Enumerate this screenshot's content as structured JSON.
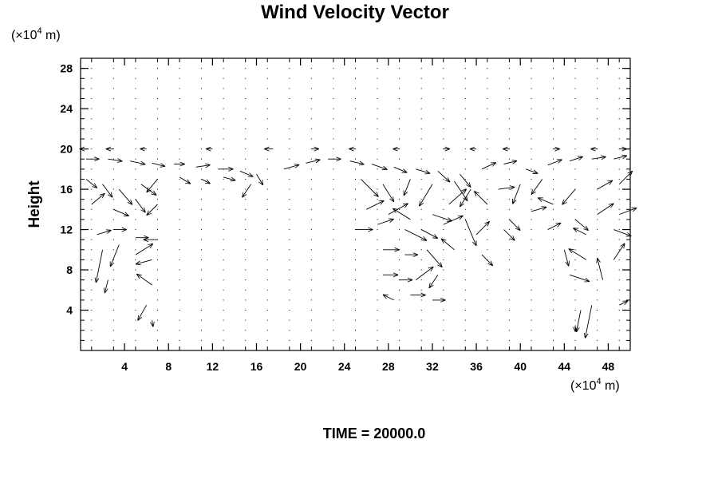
{
  "chart_data": {
    "type": "quiver",
    "title": "Wind Velocity Vector",
    "ylabel": "Height",
    "x_unit": {
      "prefix": "(×10",
      "exponent": "4",
      "suffix": " m)"
    },
    "y_unit": {
      "prefix": "(×10",
      "exponent": "4",
      "suffix": " m)"
    },
    "xlim": [
      0,
      50
    ],
    "ylim": [
      0,
      29
    ],
    "x_ticks": [
      4,
      8,
      12,
      16,
      20,
      24,
      28,
      32,
      36,
      40,
      44,
      48
    ],
    "y_ticks": [
      4,
      8,
      12,
      16,
      20,
      24,
      28
    ],
    "grid": false,
    "footer": "TIME = 20000.0",
    "vectors_note": "approximate reading of arrows: [x, y, u, v] in ×10^4 m",
    "vectors": [
      [
        0.5,
        19.0,
        1.2,
        0.0
      ],
      [
        2.5,
        19.0,
        1.3,
        -0.2
      ],
      [
        4.5,
        18.8,
        1.4,
        -0.3
      ],
      [
        6.5,
        18.6,
        1.2,
        -0.3
      ],
      [
        8.5,
        18.5,
        1.0,
        0.0
      ],
      [
        10.5,
        18.2,
        1.3,
        0.2
      ],
      [
        12.5,
        18.0,
        1.4,
        0.0
      ],
      [
        14.5,
        17.8,
        1.2,
        -0.5
      ],
      [
        16.0,
        17.5,
        0.6,
        -1.0
      ],
      [
        18.5,
        18.0,
        1.4,
        0.4
      ],
      [
        20.5,
        18.6,
        1.3,
        0.3
      ],
      [
        22.5,
        19.0,
        1.2,
        0.0
      ],
      [
        24.5,
        18.8,
        1.3,
        -0.3
      ],
      [
        26.5,
        18.5,
        1.4,
        -0.5
      ],
      [
        28.5,
        18.2,
        1.2,
        -0.5
      ],
      [
        30.5,
        18.0,
        1.3,
        -0.4
      ],
      [
        32.5,
        17.8,
        1.1,
        -1.0
      ],
      [
        34.5,
        17.5,
        1.0,
        -1.2
      ],
      [
        36.5,
        18.0,
        1.3,
        0.6
      ],
      [
        38.5,
        18.5,
        1.2,
        0.3
      ],
      [
        40.5,
        18.0,
        1.1,
        -0.4
      ],
      [
        42.5,
        18.4,
        1.3,
        0.5
      ],
      [
        44.5,
        18.8,
        1.2,
        0.4
      ],
      [
        46.5,
        19.0,
        1.3,
        0.2
      ],
      [
        48.5,
        19.0,
        1.2,
        0.3
      ],
      [
        0.5,
        20.0,
        -0.6,
        0.0
      ],
      [
        3.0,
        20.0,
        -0.7,
        0.0
      ],
      [
        6.0,
        20.0,
        -0.6,
        0.0
      ],
      [
        12.0,
        20.0,
        -0.6,
        0.0
      ],
      [
        17.5,
        20.0,
        -0.8,
        0.0
      ],
      [
        21.0,
        20.0,
        0.7,
        0.0
      ],
      [
        25.0,
        20.0,
        -0.6,
        0.0
      ],
      [
        29.0,
        20.0,
        -0.6,
        0.0
      ],
      [
        33.0,
        20.0,
        0.6,
        0.0
      ],
      [
        36.0,
        20.0,
        -0.6,
        0.0
      ],
      [
        39.0,
        20.0,
        -0.6,
        0.0
      ],
      [
        43.0,
        20.0,
        0.6,
        0.0
      ],
      [
        47.0,
        20.0,
        -0.6,
        0.0
      ],
      [
        49.0,
        20.0,
        0.7,
        0.0
      ],
      [
        0.5,
        17.0,
        1.0,
        -0.8
      ],
      [
        2.0,
        16.5,
        0.9,
        -1.2
      ],
      [
        3.5,
        16.0,
        1.2,
        -1.4
      ],
      [
        5.5,
        16.5,
        1.4,
        -1.0
      ],
      [
        7.0,
        17.0,
        -1.0,
        -1.2
      ],
      [
        9.0,
        17.2,
        1.0,
        -0.6
      ],
      [
        11.0,
        17.0,
        0.8,
        -0.4
      ],
      [
        13.0,
        17.2,
        1.1,
        -0.3
      ],
      [
        15.5,
        16.5,
        -0.8,
        -1.2
      ],
      [
        25.5,
        17.0,
        1.6,
        -1.6
      ],
      [
        27.5,
        16.5,
        1.0,
        -1.6
      ],
      [
        30.0,
        17.0,
        -0.6,
        -1.5
      ],
      [
        32.0,
        16.5,
        -1.2,
        -2.0
      ],
      [
        34.0,
        16.8,
        1.2,
        -1.8
      ],
      [
        35.5,
        16.0,
        -1.0,
        -1.6
      ],
      [
        38.0,
        16.0,
        1.5,
        0.2
      ],
      [
        40.0,
        16.5,
        -0.7,
        -1.8
      ],
      [
        42.0,
        17.0,
        -1.0,
        -1.4
      ],
      [
        45.0,
        16.0,
        -1.2,
        -1.4
      ],
      [
        47.0,
        16.0,
        1.4,
        0.8
      ],
      [
        49.0,
        16.5,
        1.2,
        1.2
      ],
      [
        1.0,
        14.5,
        1.2,
        1.0
      ],
      [
        3.0,
        14.0,
        1.4,
        -0.6
      ],
      [
        5.0,
        15.0,
        0.9,
        -1.2
      ],
      [
        7.0,
        14.5,
        -1.0,
        -1.0
      ],
      [
        26.0,
        14.0,
        1.6,
        0.8
      ],
      [
        28.0,
        13.5,
        1.8,
        1.0
      ],
      [
        30.0,
        13.0,
        -1.6,
        1.0
      ],
      [
        32.0,
        13.5,
        1.8,
        -0.6
      ],
      [
        33.5,
        14.5,
        1.6,
        1.4
      ],
      [
        35.0,
        13.0,
        1.0,
        -2.4
      ],
      [
        37.0,
        14.5,
        -1.2,
        1.2
      ],
      [
        39.0,
        13.0,
        1.0,
        -1.0
      ],
      [
        41.0,
        13.8,
        1.4,
        0.4
      ],
      [
        43.0,
        14.5,
        -1.4,
        0.6
      ],
      [
        45.0,
        13.0,
        1.2,
        -1.0
      ],
      [
        47.0,
        13.5,
        1.5,
        1.0
      ],
      [
        49.0,
        13.5,
        1.6,
        0.6
      ],
      [
        1.5,
        11.5,
        1.3,
        0.4
      ],
      [
        3.0,
        12.0,
        1.2,
        0.0
      ],
      [
        5.0,
        11.2,
        1.2,
        0.0
      ],
      [
        7.0,
        11.0,
        -1.3,
        0.0
      ],
      [
        25.0,
        12.0,
        1.6,
        0.0
      ],
      [
        27.0,
        12.5,
        1.5,
        0.5
      ],
      [
        29.5,
        12.0,
        2.0,
        -1.0
      ],
      [
        31.0,
        12.0,
        1.5,
        -0.8
      ],
      [
        33.0,
        12.5,
        1.8,
        0.8
      ],
      [
        36.0,
        11.5,
        1.2,
        1.2
      ],
      [
        38.5,
        12.0,
        1.0,
        -1.0
      ],
      [
        42.5,
        12.0,
        1.2,
        0.6
      ],
      [
        46.0,
        11.5,
        -1.2,
        0.6
      ],
      [
        48.5,
        12.0,
        1.6,
        -0.6
      ],
      [
        2.0,
        10.0,
        -0.6,
        -3.0
      ],
      [
        3.5,
        10.5,
        -0.8,
        -2.0
      ],
      [
        5.0,
        9.5,
        1.6,
        1.0
      ],
      [
        6.5,
        9.0,
        -1.5,
        -0.4
      ],
      [
        27.5,
        10.0,
        1.5,
        0.0
      ],
      [
        29.5,
        9.5,
        1.2,
        0.0
      ],
      [
        31.5,
        10.0,
        1.4,
        -1.6
      ],
      [
        34.0,
        10.0,
        -1.2,
        1.0
      ],
      [
        36.5,
        9.5,
        1.0,
        -1.0
      ],
      [
        44.0,
        10.0,
        0.4,
        -1.5
      ],
      [
        46.0,
        9.0,
        -1.6,
        1.0
      ],
      [
        48.5,
        9.0,
        1.0,
        1.5
      ],
      [
        2.5,
        7.0,
        -0.3,
        -1.2
      ],
      [
        6.5,
        6.5,
        -1.4,
        1.0
      ],
      [
        27.5,
        7.5,
        1.4,
        0.0
      ],
      [
        29.0,
        7.0,
        1.2,
        0.0
      ],
      [
        30.5,
        7.0,
        1.6,
        1.2
      ],
      [
        32.5,
        7.5,
        -0.8,
        -1.2
      ],
      [
        44.5,
        7.5,
        1.8,
        -0.6
      ],
      [
        47.5,
        7.0,
        -0.5,
        2.0
      ],
      [
        6.0,
        4.5,
        -0.8,
        -1.4
      ],
      [
        28.5,
        5.0,
        -1.0,
        0.5
      ],
      [
        30.0,
        5.5,
        1.4,
        0.0
      ],
      [
        32.0,
        5.0,
        1.2,
        0.0
      ],
      [
        45.5,
        4.0,
        -0.4,
        -2.0
      ],
      [
        46.5,
        4.5,
        -0.6,
        -3.0
      ],
      [
        49.0,
        4.5,
        0.8,
        0.4
      ],
      [
        6.5,
        3.0,
        0.1,
        -0.6
      ],
      [
        45.0,
        2.5,
        0.0,
        -0.6
      ]
    ]
  }
}
